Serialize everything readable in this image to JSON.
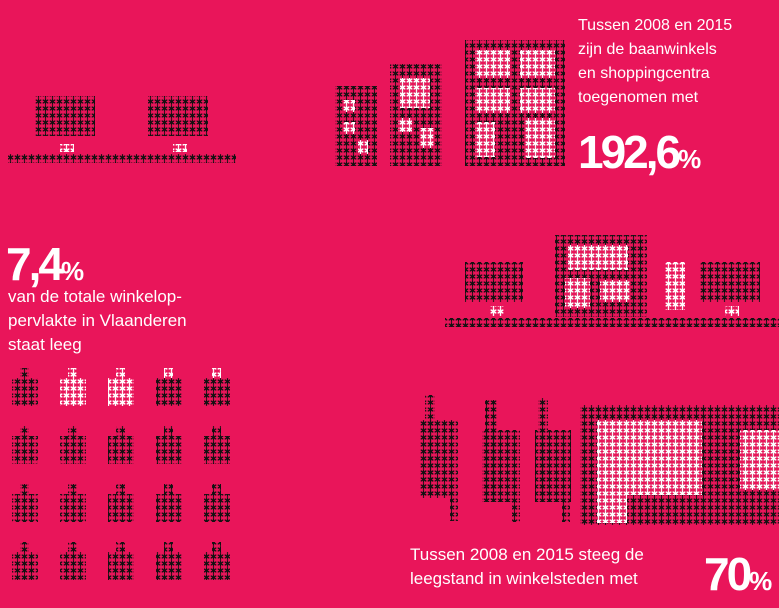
{
  "top_right": {
    "lines": [
      "Tussen 2008 en 2015",
      "zijn de baanwinkels",
      "en shoppingcentra",
      "toegenomen met"
    ],
    "number": "192,6",
    "unit": "%"
  },
  "left": {
    "number": "7,4",
    "unit": "%",
    "lines": [
      "van de totale winkelop-",
      "pervlakte in Vlaanderen",
      "staat leeg"
    ]
  },
  "bottom_right": {
    "lines": [
      "Tussen 2008 en 2015 steeg de",
      "leegstand in winkelsteden met"
    ],
    "number": "70",
    "unit": "%"
  }
}
